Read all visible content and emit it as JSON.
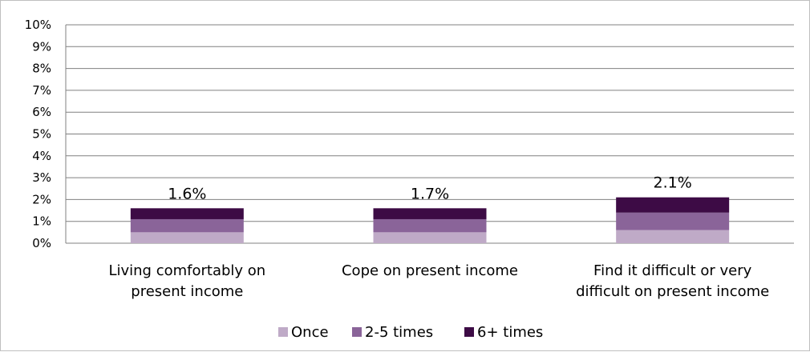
{
  "chart_data": {
    "type": "bar",
    "stacked": true,
    "categories": [
      [
        "Living comfortably on",
        "present income"
      ],
      [
        "Cope on present income"
      ],
      [
        "Find it difficult or very",
        "difficult on present income"
      ]
    ],
    "series": [
      {
        "name": "Once",
        "values": [
          0.5,
          0.5,
          0.6
        ],
        "color": "#bfaac7"
      },
      {
        "name": "2-5 times",
        "values": [
          0.6,
          0.6,
          0.8
        ],
        "color": "#8a6499"
      },
      {
        "name": "6+ times",
        "values": [
          0.5,
          0.5,
          0.7
        ],
        "color": "#3d0b45"
      }
    ],
    "totals": [
      "1.6%",
      "1.7%",
      "2.1%"
    ],
    "yticks": [
      "0%",
      "1%",
      "2%",
      "3%",
      "4%",
      "5%",
      "6%",
      "7%",
      "8%",
      "9%",
      "10%"
    ],
    "ylim": [
      0,
      10
    ],
    "grid": true,
    "legend_position": "bottom",
    "gridline_color": "#808080"
  }
}
